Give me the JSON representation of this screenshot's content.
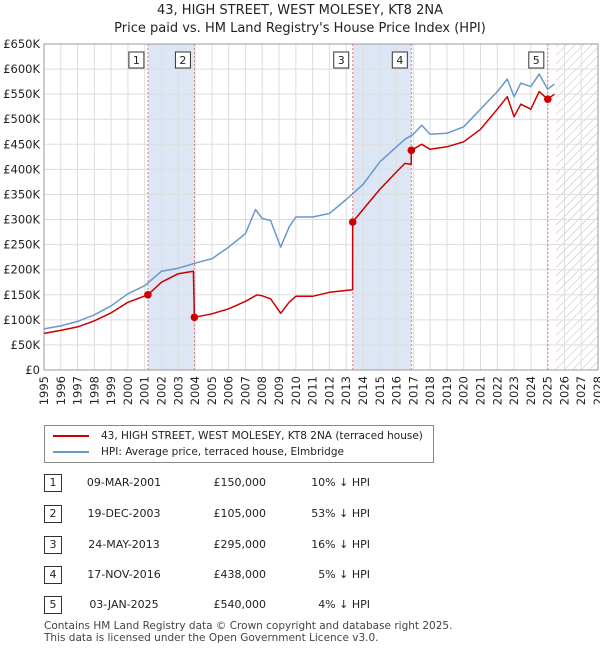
{
  "title_line1": "43, HIGH STREET, WEST MOLESEY, KT8 2NA",
  "title_line2": "Price paid vs. HM Land Registry's House Price Index (HPI)",
  "colors": {
    "price": "#cc0000",
    "hpi": "#6699cc",
    "band": "#dde6f5",
    "vline": "#e87a7a",
    "grid": "#dddddd",
    "hatch": "#bbbbbb"
  },
  "legend": {
    "price_label": "43, HIGH STREET, WEST MOLESEY, KT8 2NA (terraced house)",
    "hpi_label": "HPI: Average price, terraced house, Elmbridge"
  },
  "chart_data": {
    "type": "line",
    "xlim": [
      1995,
      2028
    ],
    "ylim": [
      0,
      650000
    ],
    "y_ticks": [
      0,
      50000,
      100000,
      150000,
      200000,
      250000,
      300000,
      350000,
      400000,
      450000,
      500000,
      550000,
      600000,
      650000
    ],
    "y_tick_labels": [
      "£0",
      "£50K",
      "£100K",
      "£150K",
      "£200K",
      "£250K",
      "£300K",
      "£350K",
      "£400K",
      "£450K",
      "£500K",
      "£550K",
      "£600K",
      "£650K"
    ],
    "x_ticks": [
      1995,
      1996,
      1997,
      1998,
      1999,
      2000,
      2001,
      2002,
      2003,
      2004,
      2005,
      2006,
      2007,
      2008,
      2009,
      2010,
      2011,
      2012,
      2013,
      2014,
      2015,
      2016,
      2017,
      2018,
      2019,
      2020,
      2021,
      2022,
      2023,
      2024,
      2025,
      2026,
      2027,
      2028
    ],
    "x_tick_labels": [
      "1995",
      "1996",
      "1997",
      "1998",
      "1999",
      "2000",
      "2001",
      "2002",
      "2003",
      "2004",
      "2005",
      "2006",
      "2007",
      "2008",
      "2009",
      "2010",
      "2011",
      "2012",
      "2013",
      "2014",
      "2015",
      "2016",
      "2017",
      "2018",
      "2019",
      "2020",
      "2021",
      "2022",
      "2023",
      "2024",
      "2025",
      "2026",
      "2027",
      "2028"
    ],
    "shaded_bands": [
      [
        2001.19,
        2003.96
      ],
      [
        2013.39,
        2016.88
      ]
    ],
    "future_from": 2025.5,
    "series": [
      {
        "name": "HPI: Average price, terraced house, Elmbridge",
        "color": "#6699cc",
        "x": [
          1995,
          1996,
          1997,
          1998,
          1999,
          2000,
          2001,
          2002,
          2003,
          2004,
          2005,
          2006,
          2007,
          2007.6,
          2008,
          2008.5,
          2009.1,
          2009.6,
          2010,
          2011,
          2012,
          2013,
          2014,
          2015,
          2016,
          2016.5,
          2017,
          2017.5,
          2018,
          2019,
          2020,
          2021,
          2022,
          2022.6,
          2023,
          2023.4,
          2024,
          2024.5,
          2025,
          2025.4
        ],
        "values": [
          82000,
          88000,
          97000,
          110000,
          128000,
          152000,
          168000,
          197000,
          203000,
          213000,
          222000,
          245000,
          272000,
          320000,
          302000,
          298000,
          245000,
          285000,
          305000,
          305000,
          312000,
          340000,
          370000,
          415000,
          445000,
          460000,
          470000,
          488000,
          470000,
          472000,
          485000,
          520000,
          555000,
          580000,
          545000,
          572000,
          565000,
          590000,
          560000,
          570000
        ]
      },
      {
        "name": "43, HIGH STREET, WEST MOLESEY, KT8 2NA (terraced house)",
        "color": "#cc0000",
        "x": [
          1995,
          1996,
          1997,
          1998,
          1999,
          2000,
          2001.19,
          2002,
          2003,
          2003.9,
          2003.96,
          2005,
          2006,
          2007,
          2007.7,
          2008,
          2008.5,
          2009.1,
          2009.6,
          2010,
          2011,
          2012,
          2013.38,
          2013.39,
          2014,
          2015,
          2016,
          2016.5,
          2016.87,
          2016.88,
          2017.5,
          2018,
          2019,
          2020,
          2021,
          2022,
          2022.6,
          2023,
          2023.4,
          2024,
          2024.5,
          2025.0,
          2025.4
        ],
        "values": [
          73000,
          79000,
          86000,
          98000,
          114000,
          135000,
          150000,
          175000,
          192000,
          197000,
          105000,
          112000,
          122000,
          137000,
          150000,
          148000,
          142000,
          113000,
          135000,
          147000,
          147000,
          155000,
          160000,
          295000,
          320000,
          360000,
          395000,
          412000,
          410000,
          438000,
          450000,
          440000,
          445000,
          455000,
          480000,
          520000,
          545000,
          505000,
          530000,
          520000,
          555000,
          540000,
          550000
        ]
      }
    ],
    "sales": [
      {
        "id": "1",
        "x": 2001.19,
        "value": 150000
      },
      {
        "id": "2",
        "x": 2003.96,
        "value": 105000
      },
      {
        "id": "3",
        "x": 2013.39,
        "value": 295000
      },
      {
        "id": "4",
        "x": 2016.88,
        "value": 438000
      },
      {
        "id": "5",
        "x": 2025.01,
        "value": 540000
      }
    ]
  },
  "transactions": [
    {
      "num": "1",
      "date": "09-MAR-2001",
      "price": "£150,000",
      "hpi": "10% ↓ HPI"
    },
    {
      "num": "2",
      "date": "19-DEC-2003",
      "price": "£105,000",
      "hpi": "53% ↓ HPI"
    },
    {
      "num": "3",
      "date": "24-MAY-2013",
      "price": "£295,000",
      "hpi": "16% ↓ HPI"
    },
    {
      "num": "4",
      "date": "17-NOV-2016",
      "price": "£438,000",
      "hpi": "5% ↓ HPI"
    },
    {
      "num": "5",
      "date": "03-JAN-2025",
      "price": "£540,000",
      "hpi": "4% ↓ HPI"
    }
  ],
  "footer_line1": "Contains HM Land Registry data © Crown copyright and database right 2025.",
  "footer_line2": "This data is licensed under the Open Government Licence v3.0."
}
